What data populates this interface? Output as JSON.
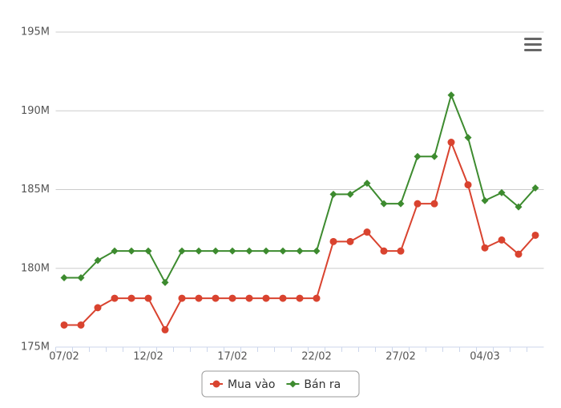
{
  "chart_data": {
    "type": "line",
    "categories": [
      "07/02",
      null,
      null,
      null,
      null,
      "12/02",
      null,
      null,
      null,
      null,
      "17/02",
      null,
      null,
      null,
      null,
      "22/02",
      null,
      null,
      null,
      null,
      "27/02",
      null,
      null,
      null,
      null,
      "04/03",
      null,
      null,
      null
    ],
    "series": [
      {
        "name": "Mua vào",
        "color": "#d9432f",
        "marker": "circle",
        "values": [
          176.4,
          176.4,
          177.5,
          178.1,
          178.1,
          178.1,
          176.1,
          178.1,
          178.1,
          178.1,
          178.1,
          178.1,
          178.1,
          178.1,
          178.1,
          178.1,
          181.7,
          181.7,
          182.3,
          181.1,
          181.1,
          184.1,
          184.1,
          188,
          185.3,
          181.3,
          181.8,
          180.9,
          182.1
        ]
      },
      {
        "name": "Bán ra",
        "color": "#3d8b2f",
        "marker": "diamond",
        "values": [
          179.4,
          179.4,
          180.5,
          181.1,
          181.1,
          181.1,
          179.1,
          181.1,
          181.1,
          181.1,
          181.1,
          181.1,
          181.1,
          181.1,
          181.1,
          181.1,
          184.7,
          184.7,
          185.4,
          184.1,
          184.1,
          187.1,
          187.1,
          191,
          188.3,
          184.3,
          184.8,
          183.9,
          185.1
        ]
      }
    ],
    "ylim": [
      175,
      195
    ],
    "yticks": [
      {
        "value": 175,
        "label": "175M"
      },
      {
        "value": 180,
        "label": "180M"
      },
      {
        "value": 185,
        "label": "185M"
      },
      {
        "value": 190,
        "label": "190M"
      },
      {
        "value": 195,
        "label": "195M"
      }
    ],
    "grid": true
  }
}
